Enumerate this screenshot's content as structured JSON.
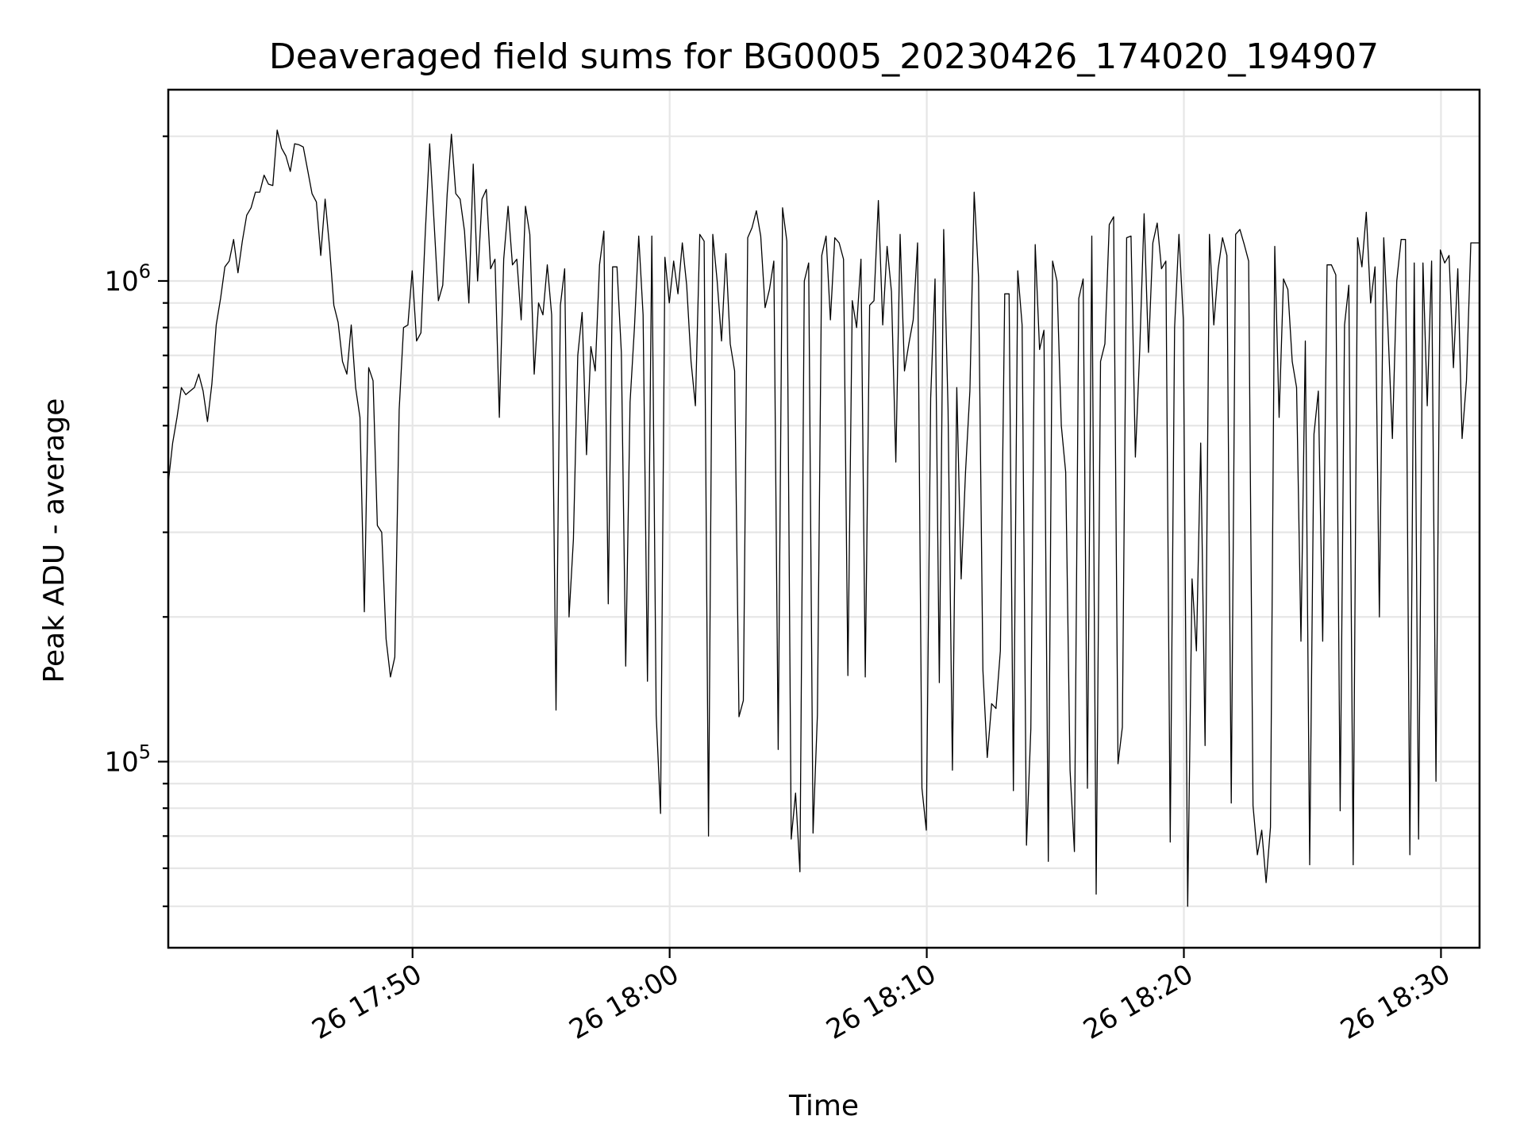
{
  "chart_data": {
    "type": "line",
    "title": "Deaveraged field sums for BG0005_20230426_174020_194907",
    "xlabel": "Time",
    "ylabel": "Peak ADU - average",
    "yscale": "log",
    "grid": true,
    "xlim": [
      "2023-04-26 17:40:30",
      "2023-04-26 18:31:30"
    ],
    "ylim": [
      41000,
      2500000
    ],
    "x_ticks": [
      {
        "value": "2023-04-26 17:50:00",
        "label": "26 17:50"
      },
      {
        "value": "2023-04-26 18:00:00",
        "label": "26 18:00"
      },
      {
        "value": "2023-04-26 18:10:00",
        "label": "26 18:10"
      },
      {
        "value": "2023-04-26 18:20:00",
        "label": "26 18:20"
      },
      {
        "value": "2023-04-26 18:30:00",
        "label": "26 18:30"
      }
    ],
    "y_ticks": [
      {
        "value": 100000,
        "base": "10",
        "exp": "5"
      },
      {
        "value": 1000000,
        "base": "10",
        "exp": "6"
      }
    ],
    "series": [
      {
        "color": "#000000",
        "start": "2023-04-26 17:40:30",
        "end": "2023-04-26 18:31:30",
        "values": [
          380000,
          460000,
          520000,
          600000,
          580000,
          590000,
          600000,
          640000,
          590000,
          510000,
          610000,
          810000,
          920000,
          1070000,
          1100000,
          1220000,
          1040000,
          1210000,
          1370000,
          1420000,
          1530000,
          1530000,
          1660000,
          1590000,
          1580000,
          2060000,
          1890000,
          1820000,
          1690000,
          1930000,
          1920000,
          1900000,
          1700000,
          1520000,
          1460000,
          1130000,
          1480000,
          1180000,
          890000,
          820000,
          680000,
          640000,
          810000,
          600000,
          520000,
          205000,
          660000,
          620000,
          310000,
          300000,
          180000,
          150000,
          165000,
          540000,
          800000,
          810000,
          1050000,
          750000,
          780000,
          1260000,
          1930000,
          1330000,
          910000,
          980000,
          1510000,
          2020000,
          1520000,
          1480000,
          1270000,
          900000,
          1750000,
          1000000,
          1480000,
          1550000,
          1060000,
          1110000,
          520000,
          1110000,
          1430000,
          1080000,
          1110000,
          830000,
          1430000,
          1250000,
          640000,
          900000,
          850000,
          1080000,
          850000,
          128000,
          890000,
          1060000,
          200000,
          290000,
          700000,
          860000,
          435000,
          730000,
          650000,
          1080000,
          1270000,
          213000,
          1070000,
          1070000,
          710000,
          158000,
          560000,
          800000,
          1240000,
          850000,
          147000,
          1240000,
          125000,
          78000,
          1120000,
          900000,
          1100000,
          940000,
          1200000,
          980000,
          680000,
          550000,
          1250000,
          1210000,
          70000,
          1250000,
          1000000,
          750000,
          1140000,
          740000,
          650000,
          124000,
          134000,
          1230000,
          1290000,
          1400000,
          1240000,
          880000,
          960000,
          1100000,
          106000,
          1420000,
          1210000,
          69000,
          86000,
          59000,
          1000000,
          1090000,
          71000,
          125000,
          1130000,
          1240000,
          830000,
          1230000,
          1200000,
          1110000,
          151000,
          910000,
          800000,
          1110000,
          150000,
          890000,
          910000,
          1470000,
          810000,
          1180000,
          950000,
          420000,
          1250000,
          650000,
          740000,
          830000,
          1200000,
          88000,
          72000,
          570000,
          1010000,
          146000,
          1280000,
          540000,
          96000,
          600000,
          240000,
          400000,
          590000,
          1530000,
          1020000,
          155000,
          102000,
          132000,
          129000,
          170000,
          940000,
          940000,
          87000,
          1050000,
          810000,
          67000,
          117000,
          1190000,
          720000,
          790000,
          62000,
          1100000,
          1000000,
          500000,
          400000,
          96000,
          65000,
          920000,
          1010000,
          88000,
          1240000,
          53000,
          680000,
          740000,
          1310000,
          1360000,
          99000,
          118000,
          1230000,
          1240000,
          430000,
          720000,
          1380000,
          710000,
          1200000,
          1320000,
          1060000,
          1100000,
          68000,
          800000,
          1250000,
          830000,
          50000,
          240000,
          170000,
          460000,
          108000,
          1250000,
          810000,
          1060000,
          1230000,
          1130000,
          82000,
          1250000,
          1280000,
          1190000,
          1100000,
          81000,
          64000,
          72000,
          56000,
          73000,
          1180000,
          520000,
          1010000,
          960000,
          680000,
          600000,
          178000,
          750000,
          61000,
          480000,
          590000,
          178000,
          1080000,
          1080000,
          1030000,
          79000,
          810000,
          980000,
          61000,
          1230000,
          1070000,
          1390000,
          900000,
          1070000,
          200000,
          1230000,
          790000,
          470000,
          1000000,
          1220000,
          1220000,
          64000,
          1090000,
          69000,
          1090000,
          550000,
          1100000,
          91000,
          1160000,
          1090000,
          1130000,
          660000,
          1060000,
          470000,
          620000,
          1200000,
          1200000,
          1200000
        ]
      }
    ]
  }
}
